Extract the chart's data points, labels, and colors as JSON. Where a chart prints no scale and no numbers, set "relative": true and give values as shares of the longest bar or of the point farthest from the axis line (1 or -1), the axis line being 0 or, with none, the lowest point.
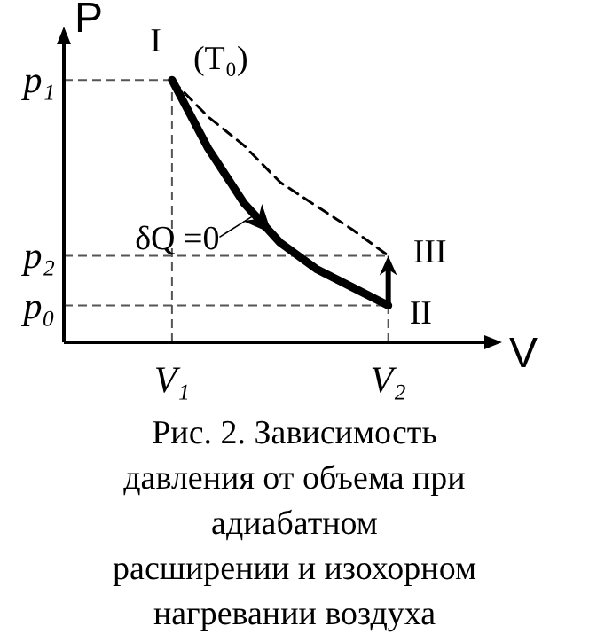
{
  "chart_data": {
    "type": "line",
    "xlabel": "V",
    "ylabel": "P",
    "relative": true,
    "categories": [
      null,
      null,
      null,
      "V₁",
      null,
      null,
      null,
      null,
      null,
      "V₂",
      null,
      null
    ],
    "marker": "none",
    "series": [
      {
        "color": "#000000",
        "line_style": "dashed",
        "values": [
          null,
          null,
          null,
          1,
          0.86,
          0.75,
          0.61,
          0.52,
          0.43,
          0.33,
          null,
          null
        ]
      },
      {
        "color": "#000000",
        "line_style": "solid",
        "values": [
          null,
          null,
          null,
          1,
          0.74,
          0.53,
          0.38,
          0.28,
          0.21,
          0.14,
          null,
          null
        ]
      }
    ],
    "ref_lines": [
      {
        "axis": "y",
        "value": 1,
        "label": "p₁",
        "color": "#555555",
        "line_style": "dashed"
      },
      {
        "axis": "y",
        "value": 0.33,
        "label": "p₂",
        "color": "#555555",
        "line_style": "dashed"
      },
      {
        "axis": "y",
        "value": 0.14,
        "label": "p₀",
        "color": "#555555",
        "line_style": "dashed"
      }
    ],
    "annotations": [
      {
        "text": "I",
        "x": "V₁",
        "y": 1
      },
      {
        "text": "(T₀)",
        "x": "V₁",
        "y": 1
      },
      {
        "text": "III",
        "x": "V₂",
        "y": 0.33
      },
      {
        "text": "II",
        "x": "V₂",
        "y": 0.14
      },
      "δQ =0",
      "Рис. 2. Зависимость\nдавления от объема при\nадиабатном\nрасширении и изохорном\nнагревании воздуха"
    ]
  }
}
